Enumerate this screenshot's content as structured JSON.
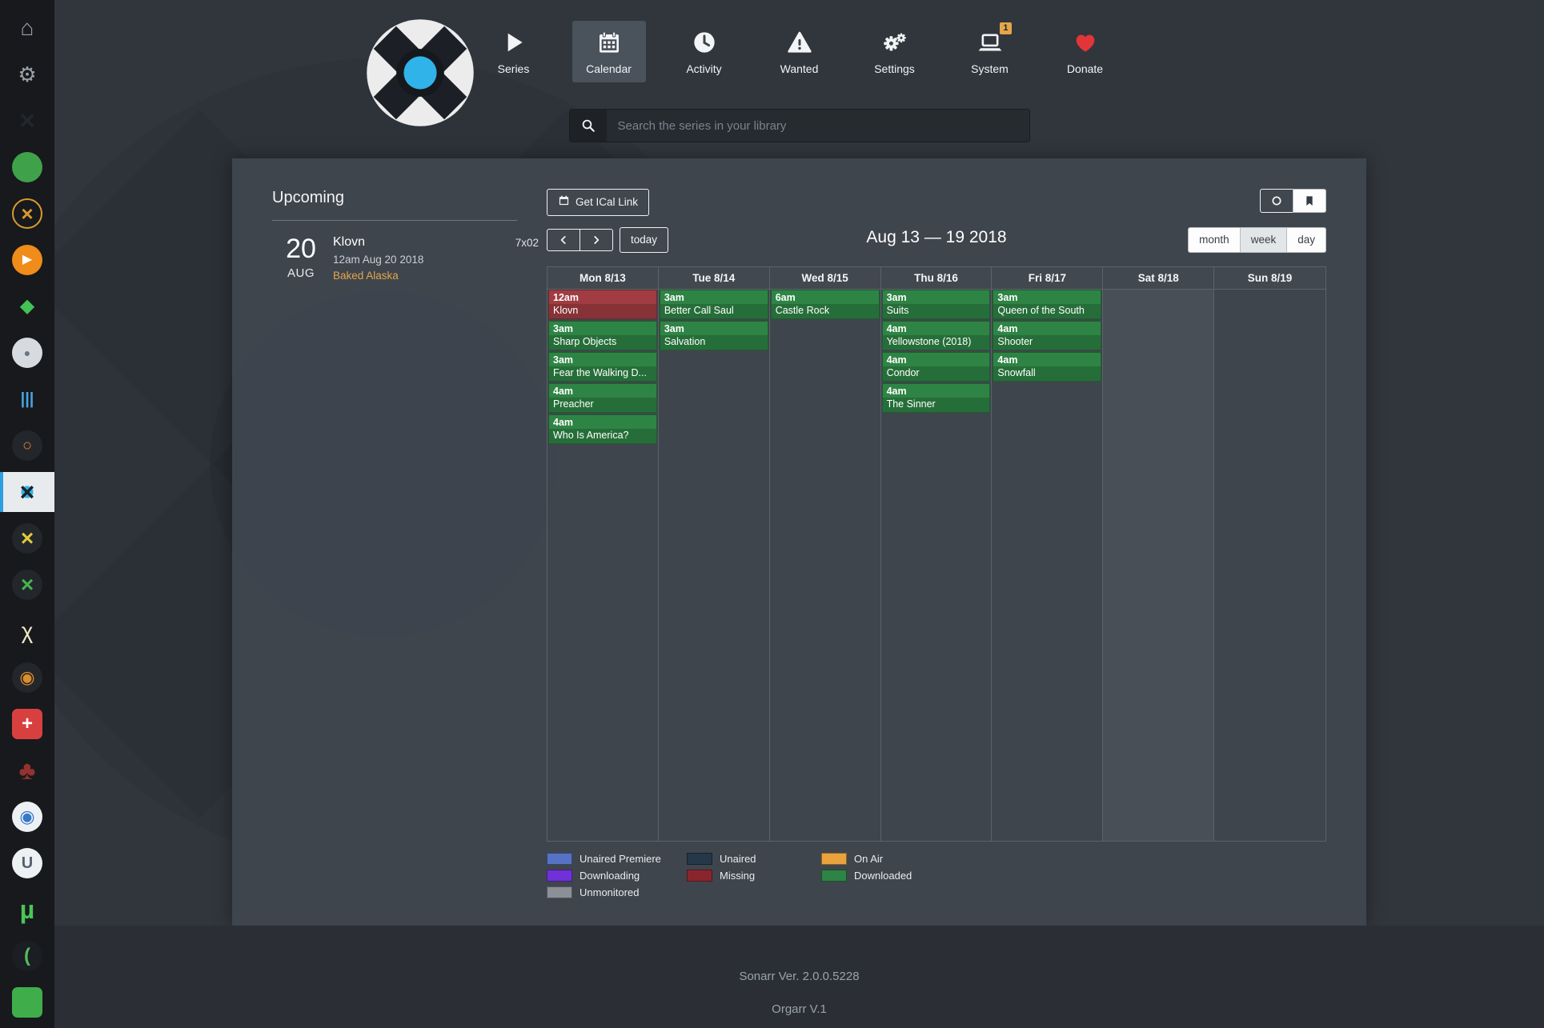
{
  "header": {
    "nav": [
      {
        "label": "Series"
      },
      {
        "label": "Calendar",
        "active": true
      },
      {
        "label": "Activity"
      },
      {
        "label": "Wanted"
      },
      {
        "label": "Settings"
      },
      {
        "label": "System",
        "badge": "1"
      },
      {
        "label": "Donate"
      }
    ],
    "search_placeholder": "Search the series in your library"
  },
  "sidebar": {
    "items": [
      {
        "name": "home",
        "glyph": "⌂",
        "fg": "#9aa2aa",
        "size": 28
      },
      {
        "name": "settings-gear",
        "glyph": "⚙",
        "fg": "#9aa2aa",
        "size": 26
      },
      {
        "name": "app-dark-x",
        "glyph": "×",
        "fg": "#22272d",
        "size": 34,
        "weight": "bold"
      },
      {
        "name": "app-green-disc",
        "bg": "#3fa24a"
      },
      {
        "name": "app-amber-ring",
        "glyph": "×",
        "fg": "#d99b2c",
        "size": 26,
        "weight": "bold",
        "border": "2px solid #d99b2c"
      },
      {
        "name": "app-orange-play",
        "bg": "#ef8c1a",
        "glyph": "▶",
        "fg": "#ffffff",
        "size": 16
      },
      {
        "name": "app-green-diamond",
        "glyph": "◆",
        "fg": "#43c355",
        "size": 24
      },
      {
        "name": "app-gray-disc",
        "bg": "#d7dbdf",
        "glyph": "●",
        "fg": "#6b7684",
        "size": 14
      },
      {
        "name": "app-blue-bars",
        "glyph": "|||",
        "fg": "#4aa3df",
        "size": 20,
        "weight": "bold"
      },
      {
        "name": "app-orange-search",
        "bg": "#23272c",
        "glyph": "○",
        "fg": "#d9822b",
        "size": 20,
        "weight": "bold"
      },
      {
        "name": "sonarr",
        "active": true,
        "bg": "radial-gradient(circle, #2fb3e8 0 7px, rgba(0,0,0,0) 8px)",
        "glyph": "×",
        "fg": "#1d2227",
        "size": 32,
        "weight": "bold"
      },
      {
        "name": "app-yellow-x",
        "bg": "#23272c",
        "glyph": "×",
        "fg": "#e3c93e",
        "size": 28,
        "weight": "bold"
      },
      {
        "name": "app-green-x",
        "bg": "#23272c",
        "glyph": "×",
        "fg": "#43b54d",
        "size": 28,
        "weight": "bold"
      },
      {
        "name": "app-crossed-sticks",
        "glyph": "χ",
        "fg": "#efe6c6",
        "size": 28
      },
      {
        "name": "app-orange-rings",
        "bg": "#23272c",
        "glyph": "◉",
        "fg": "#df8c2a",
        "size": 22
      },
      {
        "name": "app-red-shield",
        "bg": "#d84040",
        "shape": "square",
        "glyph": "+",
        "fg": "#ffffff",
        "size": 24,
        "weight": "bold"
      },
      {
        "name": "app-red-trees",
        "glyph": "♣",
        "fg": "#93322e",
        "size": 32
      },
      {
        "name": "app-blue-target",
        "bg": "#eef1f4",
        "glyph": "◉",
        "fg": "#3579c8",
        "size": 22
      },
      {
        "name": "app-letter-u",
        "bg": "#eef1f4",
        "glyph": "U",
        "fg": "#566070",
        "size": 20,
        "weight": "bold"
      },
      {
        "name": "app-utorrent",
        "glyph": "µ",
        "fg": "#4cc457",
        "size": 32,
        "weight": "bold"
      },
      {
        "name": "app-dark-disc",
        "bg": "#1b1e22",
        "glyph": "(",
        "fg": "#54bd5e",
        "size": 24,
        "weight": "bold"
      },
      {
        "name": "app-green-square",
        "bg": "#3fae4a",
        "shape": "square"
      }
    ]
  },
  "upcoming": {
    "title": "Upcoming",
    "events": [
      {
        "day": "20",
        "month": "AUG",
        "series": "Klovn",
        "aired": "12am Aug 20 2018",
        "episode_title": "Baked Alaska",
        "episode": "7x02"
      }
    ]
  },
  "calendar": {
    "ical_button": "Get ICal Link",
    "today_button": "today",
    "range_title": "Aug 13 — 19 2018",
    "views": [
      {
        "label": "month"
      },
      {
        "label": "week",
        "active": true
      },
      {
        "label": "day"
      }
    ],
    "status_colors": {
      "missing": "#a03c42",
      "downloaded": "#2e8444"
    },
    "days": [
      {
        "label": "Mon 8/13",
        "events": [
          {
            "time": "12am",
            "title": "Klovn",
            "status": "missing"
          },
          {
            "time": "3am",
            "title": "Sharp Objects",
            "status": "downloaded"
          },
          {
            "time": "3am",
            "title": "Fear the Walking D...",
            "status": "downloaded"
          },
          {
            "time": "4am",
            "title": "Preacher",
            "status": "downloaded"
          },
          {
            "time": "4am",
            "title": "Who Is America?",
            "status": "downloaded"
          }
        ]
      },
      {
        "label": "Tue 8/14",
        "events": [
          {
            "time": "3am",
            "title": "Better Call Saul",
            "status": "downloaded"
          },
          {
            "time": "3am",
            "title": "Salvation",
            "status": "downloaded"
          }
        ]
      },
      {
        "label": "Wed 8/15",
        "events": [
          {
            "time": "6am",
            "title": "Castle Rock",
            "status": "downloaded"
          }
        ]
      },
      {
        "label": "Thu 8/16",
        "events": [
          {
            "time": "3am",
            "title": "Suits",
            "status": "downloaded"
          },
          {
            "time": "4am",
            "title": "Yellowstone (2018)",
            "status": "downloaded"
          },
          {
            "time": "4am",
            "title": "Condor",
            "status": "downloaded"
          },
          {
            "time": "4am",
            "title": "The Sinner",
            "status": "downloaded"
          }
        ]
      },
      {
        "label": "Fri 8/17",
        "events": [
          {
            "time": "3am",
            "title": "Queen of the South",
            "status": "downloaded"
          },
          {
            "time": "4am",
            "title": "Shooter",
            "status": "downloaded"
          },
          {
            "time": "4am",
            "title": "Snowfall",
            "status": "downloaded"
          }
        ]
      },
      {
        "label": "Sat 8/18",
        "is_today": true,
        "events": []
      },
      {
        "label": "Sun 8/19",
        "events": []
      }
    ],
    "legend": [
      {
        "label": "Unaired Premiere",
        "color": "#5672c4"
      },
      {
        "label": "Unaired",
        "color": "#25384a"
      },
      {
        "label": "On Air",
        "color": "#e8a33d"
      },
      {
        "label": "Downloading",
        "color": "#7031d8"
      },
      {
        "label": "Missing",
        "color": "#8a252e"
      },
      {
        "label": "Downloaded",
        "color": "#2e8444"
      },
      {
        "label": "Unmonitored",
        "color": "#8a9096"
      }
    ]
  },
  "footer": {
    "version": "Sonarr Ver. 2.0.0.5228",
    "subtitle": "Orgarr V.1"
  }
}
